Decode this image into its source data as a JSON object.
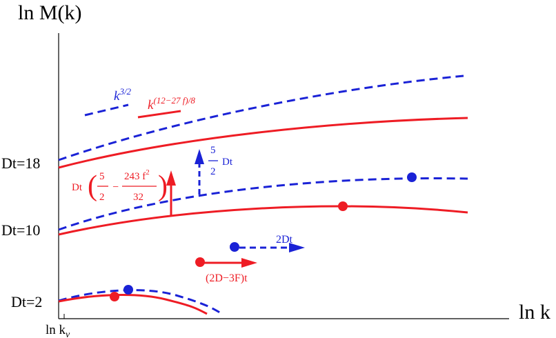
{
  "axes": {
    "y_label": "ln M(k)",
    "x_label": "ln k",
    "x_origin_label_main": "ln k",
    "x_origin_label_sub": "ν"
  },
  "y_ticks": [
    "Dt=18",
    "Dt=10",
    "Dt=2"
  ],
  "slope_labels": {
    "blue_base": "k",
    "blue_exp": "3/2",
    "red_base": "k",
    "red_exp": "(12−27 f)/8"
  },
  "annotations": {
    "red_shift_prefix": "Dt",
    "red_shift_a_num": "5",
    "red_shift_a_den": "2",
    "red_shift_minus": "−",
    "red_shift_b_num": "243 f",
    "red_shift_b_exp": "2",
    "red_shift_b_den": "32",
    "blue_shift_num": "5",
    "blue_shift_den": "2",
    "blue_shift_suffix": "Dt",
    "blue_drift": "2Dt",
    "red_drift": "(2D−3F)t"
  },
  "colors": {
    "red": "#ee1c24",
    "blue": "#1a22d6",
    "axis": "#000000"
  }
}
